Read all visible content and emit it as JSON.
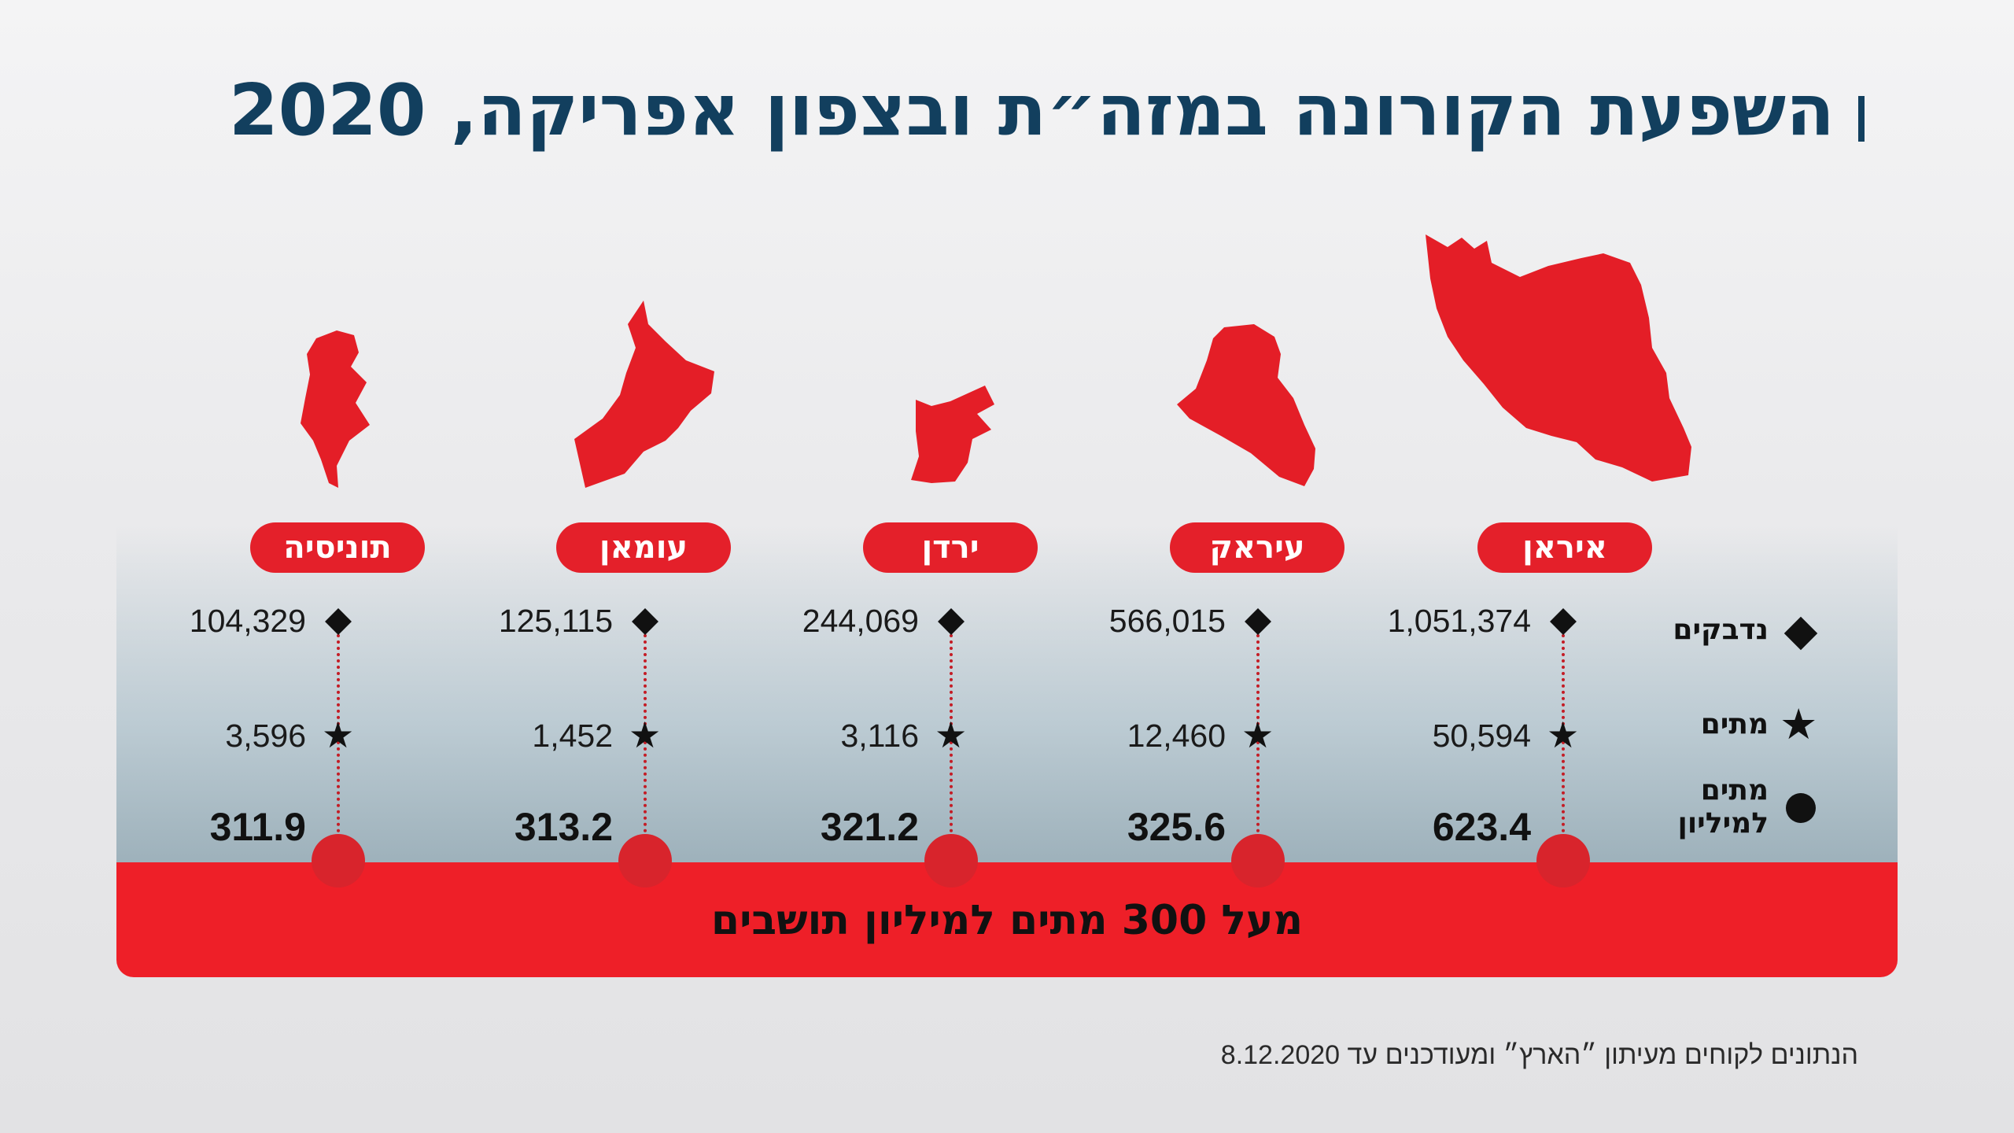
{
  "title": "השפעת הקורונה במזה״ת ובצפון אפריקה, 2020",
  "band_text": "מעל 300 מתים למיליון תושבים",
  "source": "הנתונים לקוחים מעיתון ״הארץ״ ומעודכנים עד 8.12.2020",
  "legend": {
    "cases": "נדבקים",
    "deaths": "מתים",
    "per_million": "מתים למיליון"
  },
  "colors": {
    "accent": "#e4202a",
    "title": "#123f5e",
    "band": "#ee1f28"
  },
  "chart_data": {
    "type": "table",
    "title": "השפעת הקורונה במזה״ת ובצפון אפריקה, 2020",
    "categories": [
      "איראן",
      "עיראק",
      "ירדן",
      "עומאן",
      "תוניסיה"
    ],
    "series": [
      {
        "name": "נדבקים",
        "values": [
          "1,051,374",
          "566,015",
          "244,069",
          "125,115",
          "104,329"
        ]
      },
      {
        "name": "מתים",
        "values": [
          "50,594",
          "12,460",
          "3,116",
          "1,452",
          "3,596"
        ]
      },
      {
        "name": "מתים למיליון",
        "values": [
          "623.4",
          "325.6",
          "321.2",
          "313.2",
          "311.9"
        ]
      }
    ]
  }
}
